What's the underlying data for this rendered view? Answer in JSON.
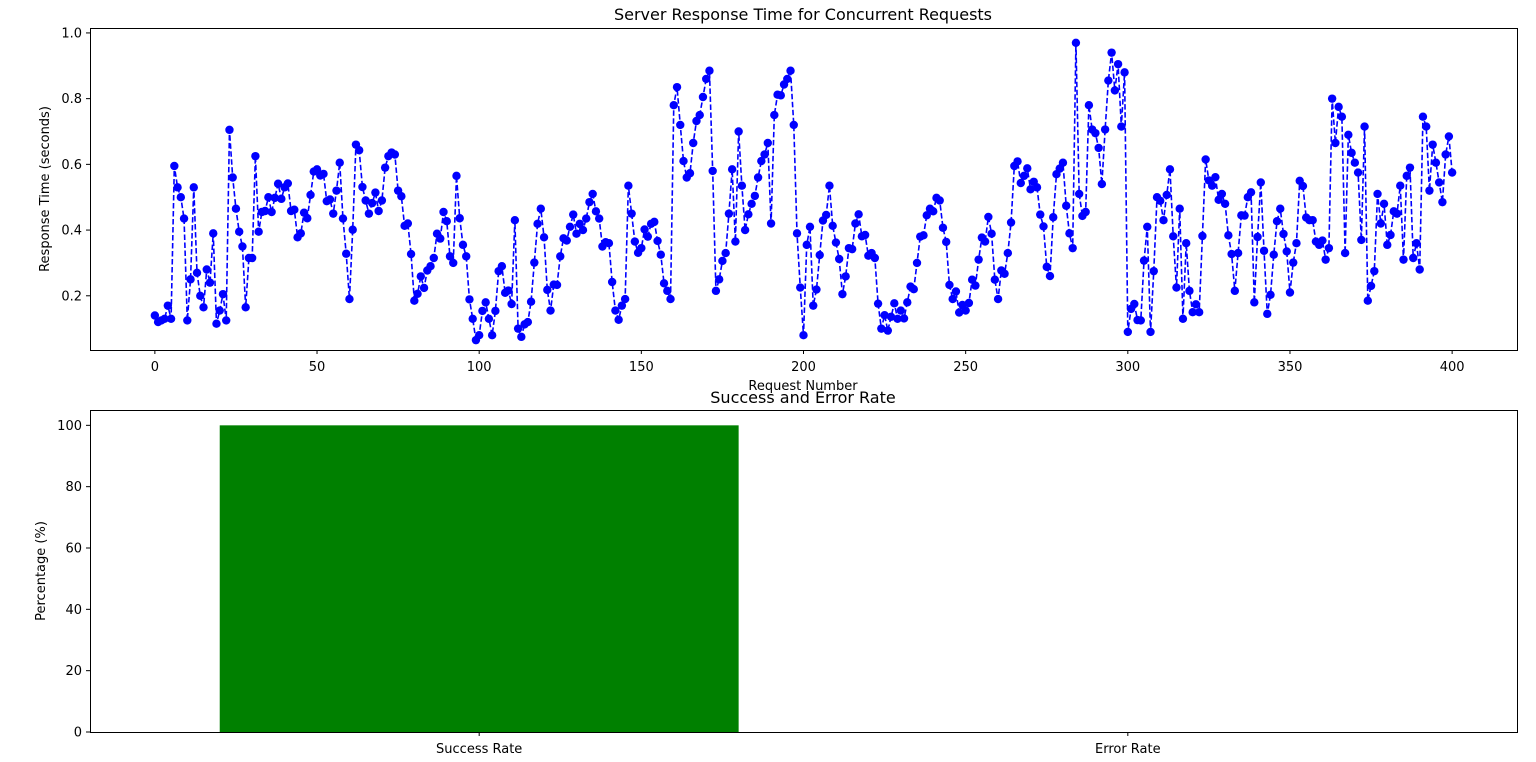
{
  "chart_data": [
    {
      "type": "line",
      "title": "Server Response Time for Concurrent Requests",
      "xlabel": "Request Number",
      "ylabel": "Response Time (seconds)",
      "xlim": [
        -20,
        420
      ],
      "ylim": [
        0.035,
        1.015
      ],
      "xticks": [
        0,
        50,
        100,
        150,
        200,
        250,
        300,
        350,
        400
      ],
      "yticks": [
        0.2,
        0.4,
        0.6,
        0.8,
        1.0
      ],
      "ytick_labels": [
        "0.2",
        "0.4",
        "0.6",
        "0.8",
        "1.0"
      ],
      "grid": false,
      "color": "#0000ff",
      "line_style": "dashed",
      "marker": "circle",
      "anchors": [
        [
          0,
          0.14
        ],
        [
          1,
          0.12
        ],
        [
          2,
          0.125
        ],
        [
          3,
          0.13
        ],
        [
          4,
          0.17
        ],
        [
          5,
          0.13
        ],
        [
          6,
          0.595
        ],
        [
          7,
          0.53
        ],
        [
          8,
          0.5
        ],
        [
          9,
          0.435
        ],
        [
          10,
          0.125
        ],
        [
          11,
          0.25
        ],
        [
          12,
          0.53
        ],
        [
          13,
          0.27
        ],
        [
          14,
          0.2
        ],
        [
          15,
          0.165
        ],
        [
          16,
          0.28
        ],
        [
          17,
          0.24
        ],
        [
          18,
          0.39
        ],
        [
          19,
          0.115
        ],
        [
          20,
          0.155
        ],
        [
          21,
          0.205
        ],
        [
          22,
          0.125
        ],
        [
          23,
          0.705
        ],
        [
          24,
          0.56
        ],
        [
          25,
          0.465
        ],
        [
          26,
          0.395
        ],
        [
          27,
          0.35
        ],
        [
          28,
          0.165
        ],
        [
          29,
          0.315
        ],
        [
          30,
          0.315
        ],
        [
          31,
          0.625
        ],
        [
          32,
          0.395
        ],
        [
          33,
          0.455
        ],
        [
          40,
          0.53
        ],
        [
          45,
          0.39
        ],
        [
          50,
          0.585
        ],
        [
          55,
          0.45
        ],
        [
          57,
          0.605
        ],
        [
          60,
          0.19
        ],
        [
          62,
          0.66
        ],
        [
          65,
          0.49
        ],
        [
          70,
          0.49
        ],
        [
          72,
          0.625
        ],
        [
          74,
          0.63
        ],
        [
          75,
          0.52
        ],
        [
          78,
          0.42
        ],
        [
          80,
          0.185
        ],
        [
          85,
          0.29
        ],
        [
          89,
          0.455
        ],
        [
          92,
          0.3
        ],
        [
          93,
          0.565
        ],
        [
          95,
          0.355
        ],
        [
          98,
          0.13
        ],
        [
          100,
          0.08
        ],
        [
          102,
          0.18
        ],
        [
          104,
          0.08
        ],
        [
          106,
          0.275
        ],
        [
          110,
          0.175
        ],
        [
          111,
          0.43
        ],
        [
          112,
          0.1
        ],
        [
          115,
          0.12
        ],
        [
          119,
          0.465
        ],
        [
          122,
          0.155
        ],
        [
          126,
          0.375
        ],
        [
          128,
          0.41
        ],
        [
          132,
          0.4
        ],
        [
          134,
          0.485
        ],
        [
          135,
          0.51
        ],
        [
          138,
          0.35
        ],
        [
          140,
          0.36
        ],
        [
          142,
          0.155
        ],
        [
          145,
          0.19
        ],
        [
          146,
          0.535
        ],
        [
          148,
          0.365
        ],
        [
          150,
          0.345
        ],
        [
          152,
          0.38
        ],
        [
          154,
          0.425
        ],
        [
          156,
          0.325
        ],
        [
          158,
          0.215
        ],
        [
          159,
          0.19
        ],
        [
          160,
          0.78
        ],
        [
          161,
          0.835
        ],
        [
          162,
          0.72
        ],
        [
          163,
          0.61
        ],
        [
          164,
          0.56
        ],
        [
          166,
          0.665
        ],
        [
          168,
          0.75
        ],
        [
          169,
          0.805
        ],
        [
          170,
          0.86
        ],
        [
          171,
          0.885
        ],
        [
          172,
          0.58
        ],
        [
          173,
          0.215
        ],
        [
          174,
          0.25
        ],
        [
          176,
          0.33
        ],
        [
          178,
          0.585
        ],
        [
          179,
          0.365
        ],
        [
          180,
          0.7
        ],
        [
          181,
          0.535
        ],
        [
          182,
          0.4
        ],
        [
          184,
          0.48
        ],
        [
          186,
          0.56
        ],
        [
          187,
          0.61
        ],
        [
          189,
          0.665
        ],
        [
          190,
          0.42
        ],
        [
          191,
          0.75
        ],
        [
          193,
          0.81
        ],
        [
          195,
          0.86
        ],
        [
          196,
          0.885
        ],
        [
          197,
          0.72
        ],
        [
          198,
          0.39
        ],
        [
          199,
          0.225
        ],
        [
          200,
          0.08
        ],
        [
          201,
          0.355
        ],
        [
          202,
          0.41
        ],
        [
          203,
          0.17
        ],
        [
          208,
          0.535
        ],
        [
          212,
          0.205
        ],
        [
          216,
          0.42
        ],
        [
          219,
          0.385
        ],
        [
          222,
          0.315
        ],
        [
          224,
          0.1
        ],
        [
          230,
          0.155
        ],
        [
          234,
          0.22
        ],
        [
          236,
          0.38
        ],
        [
          239,
          0.465
        ],
        [
          242,
          0.49
        ],
        [
          246,
          0.19
        ],
        [
          250,
          0.155
        ],
        [
          254,
          0.31
        ],
        [
          257,
          0.44
        ],
        [
          260,
          0.19
        ],
        [
          263,
          0.33
        ],
        [
          265,
          0.595
        ],
        [
          268,
          0.565
        ],
        [
          272,
          0.53
        ],
        [
          276,
          0.26
        ],
        [
          278,
          0.57
        ],
        [
          280,
          0.605
        ],
        [
          282,
          0.39
        ],
        [
          283,
          0.345
        ],
        [
          284,
          0.97
        ],
        [
          285,
          0.51
        ],
        [
          287,
          0.455
        ],
        [
          288,
          0.78
        ],
        [
          290,
          0.695
        ],
        [
          292,
          0.54
        ],
        [
          294,
          0.855
        ],
        [
          295,
          0.94
        ],
        [
          296,
          0.825
        ],
        [
          297,
          0.905
        ],
        [
          298,
          0.715
        ],
        [
          299,
          0.88
        ],
        [
          300,
          0.09
        ],
        [
          301,
          0.16
        ],
        [
          302,
          0.175
        ],
        [
          304,
          0.125
        ],
        [
          306,
          0.41
        ],
        [
          307,
          0.09
        ],
        [
          308,
          0.275
        ],
        [
          309,
          0.5
        ],
        [
          311,
          0.43
        ],
        [
          313,
          0.585
        ],
        [
          315,
          0.225
        ],
        [
          316,
          0.465
        ],
        [
          317,
          0.13
        ],
        [
          318,
          0.36
        ],
        [
          320,
          0.15
        ],
        [
          322,
          0.15
        ],
        [
          324,
          0.615
        ],
        [
          326,
          0.535
        ],
        [
          330,
          0.48
        ],
        [
          333,
          0.215
        ],
        [
          335,
          0.445
        ],
        [
          338,
          0.515
        ],
        [
          339,
          0.18
        ],
        [
          341,
          0.545
        ],
        [
          343,
          0.145
        ],
        [
          345,
          0.325
        ],
        [
          347,
          0.465
        ],
        [
          350,
          0.21
        ],
        [
          352,
          0.36
        ],
        [
          353,
          0.55
        ],
        [
          356,
          0.43
        ],
        [
          358,
          0.365
        ],
        [
          361,
          0.31
        ],
        [
          362,
          0.345
        ],
        [
          363,
          0.8
        ],
        [
          364,
          0.665
        ],
        [
          365,
          0.775
        ],
        [
          366,
          0.745
        ],
        [
          367,
          0.33
        ],
        [
          368,
          0.69
        ],
        [
          369,
          0.635
        ],
        [
          370,
          0.605
        ],
        [
          371,
          0.575
        ],
        [
          372,
          0.37
        ],
        [
          373,
          0.715
        ],
        [
          374,
          0.185
        ],
        [
          375,
          0.23
        ],
        [
          376,
          0.275
        ],
        [
          377,
          0.51
        ],
        [
          378,
          0.42
        ],
        [
          379,
          0.48
        ],
        [
          380,
          0.355
        ],
        [
          381,
          0.385
        ],
        [
          383,
          0.45
        ],
        [
          384,
          0.535
        ],
        [
          385,
          0.31
        ],
        [
          386,
          0.565
        ],
        [
          387,
          0.59
        ],
        [
          388,
          0.315
        ],
        [
          389,
          0.36
        ],
        [
          390,
          0.28
        ],
        [
          391,
          0.745
        ],
        [
          392,
          0.715
        ],
        [
          393,
          0.52
        ],
        [
          394,
          0.66
        ],
        [
          395,
          0.605
        ],
        [
          396,
          0.545
        ],
        [
          397,
          0.485
        ],
        [
          398,
          0.63
        ],
        [
          399,
          0.685
        ],
        [
          400,
          0.575
        ]
      ]
    },
    {
      "type": "bar",
      "title": "Success and Error Rate",
      "xlabel": "",
      "ylabel": "Percentage (%)",
      "categories": [
        "Success Rate",
        "Error Rate"
      ],
      "values": [
        100,
        0
      ],
      "colors": [
        "#008000",
        "#ff0000"
      ],
      "ylim": [
        0,
        105
      ],
      "yticks": [
        0,
        20,
        40,
        60,
        80,
        100
      ],
      "grid": false
    }
  ]
}
